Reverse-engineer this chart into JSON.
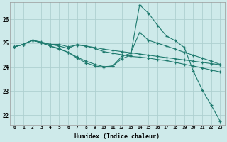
{
  "xlabel": "Humidex (Indice chaleur)",
  "background_color": "#ceeaea",
  "grid_color": "#aed0d0",
  "line_color": "#1e7a6e",
  "xlim": [
    -0.5,
    23.5
  ],
  "ylim": [
    21.6,
    26.7
  ],
  "yticks": [
    22,
    23,
    24,
    25,
    26
  ],
  "xticks": [
    0,
    1,
    2,
    3,
    4,
    5,
    6,
    7,
    8,
    9,
    10,
    11,
    12,
    13,
    14,
    15,
    16,
    17,
    18,
    19,
    20,
    21,
    22,
    23
  ],
  "lines": [
    {
      "x": [
        0,
        1,
        2,
        3,
        4,
        5,
        6,
        7,
        8,
        9,
        10,
        11,
        12,
        13,
        14,
        15,
        16,
        17,
        18,
        19,
        20,
        21,
        22,
        23
      ],
      "y": [
        24.85,
        24.95,
        25.12,
        25.05,
        24.95,
        24.95,
        24.85,
        24.92,
        24.88,
        24.82,
        24.75,
        24.7,
        24.65,
        24.6,
        24.55,
        24.5,
        24.45,
        24.4,
        24.35,
        24.3,
        24.25,
        24.2,
        24.15,
        24.1
      ]
    },
    {
      "x": [
        0,
        1,
        2,
        3,
        4,
        5,
        6,
        7,
        8,
        9,
        10,
        11,
        12,
        13,
        14,
        15,
        16,
        17,
        18,
        19,
        20,
        21,
        22,
        23
      ],
      "y": [
        24.85,
        24.95,
        25.12,
        25.02,
        24.95,
        24.88,
        24.78,
        24.95,
        24.88,
        24.78,
        24.65,
        24.58,
        24.52,
        24.45,
        24.42,
        24.38,
        24.32,
        24.27,
        24.2,
        24.12,
        24.05,
        23.97,
        23.88,
        23.8
      ]
    },
    {
      "x": [
        0,
        1,
        2,
        3,
        4,
        5,
        6,
        7,
        8,
        9,
        10,
        11,
        12,
        13,
        14,
        15,
        16,
        17,
        18,
        19,
        20,
        21,
        22,
        23
      ],
      "y": [
        24.85,
        24.95,
        25.12,
        25.02,
        24.88,
        24.75,
        24.62,
        24.42,
        24.25,
        24.12,
        24.02,
        24.05,
        24.45,
        24.58,
        25.45,
        25.12,
        25.0,
        24.88,
        24.75,
        24.62,
        24.5,
        24.38,
        24.25,
        24.12
      ]
    },
    {
      "x": [
        0,
        1,
        2,
        3,
        4,
        5,
        6,
        7,
        8,
        9,
        10,
        11,
        12,
        13,
        14,
        15,
        16,
        17,
        18,
        19,
        20,
        21,
        22,
        23
      ],
      "y": [
        24.85,
        24.95,
        25.12,
        25.02,
        24.88,
        24.78,
        24.62,
        24.38,
        24.18,
        24.05,
        24.0,
        24.05,
        24.35,
        24.5,
        26.6,
        26.25,
        25.75,
        25.3,
        25.1,
        24.82,
        23.85,
        23.05,
        22.42,
        21.75
      ]
    }
  ]
}
